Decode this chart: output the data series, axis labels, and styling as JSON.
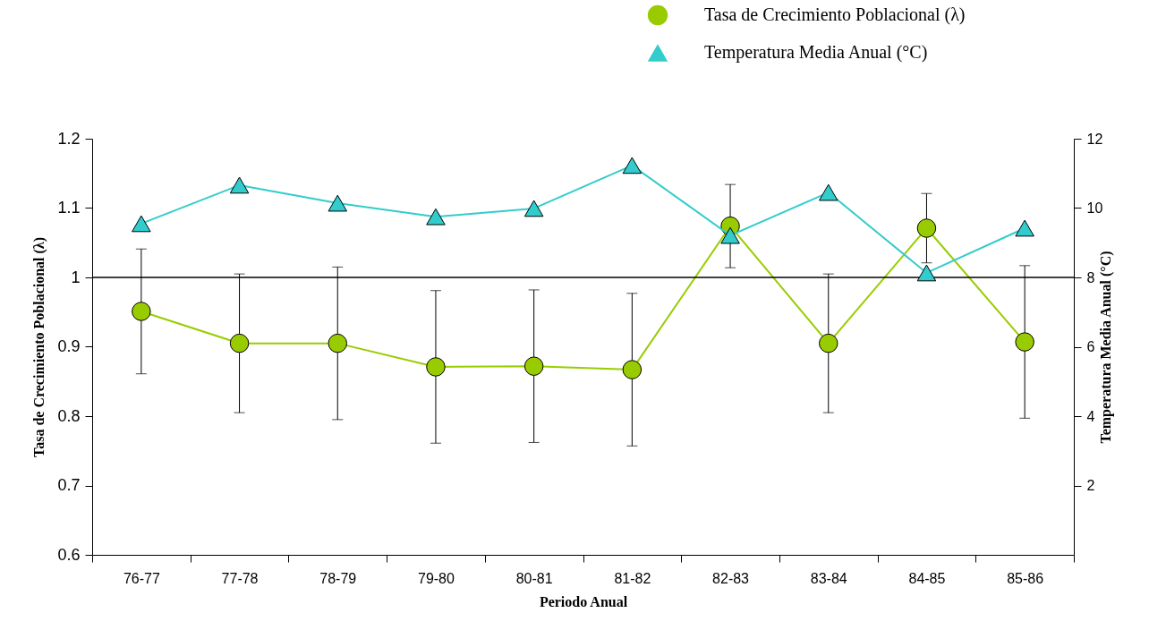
{
  "chart_data": {
    "type": "line",
    "xlabel": "Periodo Anual",
    "ylabel": "Tasa de Crecimiento Poblacional (λ)",
    "y2label": "Temperatura Media Anual (°C)",
    "categories": [
      "76-77",
      "77-78",
      "78-79",
      "79-80",
      "80-81",
      "81-82",
      "82-83",
      "83-84",
      "84-85",
      "85-86"
    ],
    "series": [
      {
        "name": "Tasa de Crecimiento Poblacional (λ)",
        "color": "#99cc00",
        "marker": "circle",
        "values": [
          0.951,
          0.905,
          0.905,
          0.871,
          0.872,
          0.867,
          1.074,
          0.905,
          1.071,
          0.907
        ],
        "errors": [
          0.09,
          0.1,
          0.11,
          0.11,
          0.11,
          0.11,
          0.06,
          0.1,
          0.05,
          0.11
        ]
      },
      {
        "name": "Temperatura Media Anual (°C)",
        "color": "#33cccc",
        "marker": "triangle",
        "axis": "y2",
        "values": [
          9.55,
          10.66,
          10.14,
          9.75,
          9.99,
          11.23,
          9.21,
          10.45,
          8.13,
          9.42
        ]
      }
    ],
    "ylim": [
      0.6,
      1.2
    ],
    "yticks": [
      0.6,
      0.7,
      0.8,
      0.9,
      1,
      1.1,
      1.2
    ],
    "y2lim": [
      0,
      12
    ],
    "y2ticks": [
      2,
      4,
      6,
      8,
      10,
      12
    ],
    "ref_lines": [
      {
        "axis": "y",
        "value": 1,
        "color": "#000000"
      }
    ],
    "grid": false,
    "legend": "top right"
  }
}
